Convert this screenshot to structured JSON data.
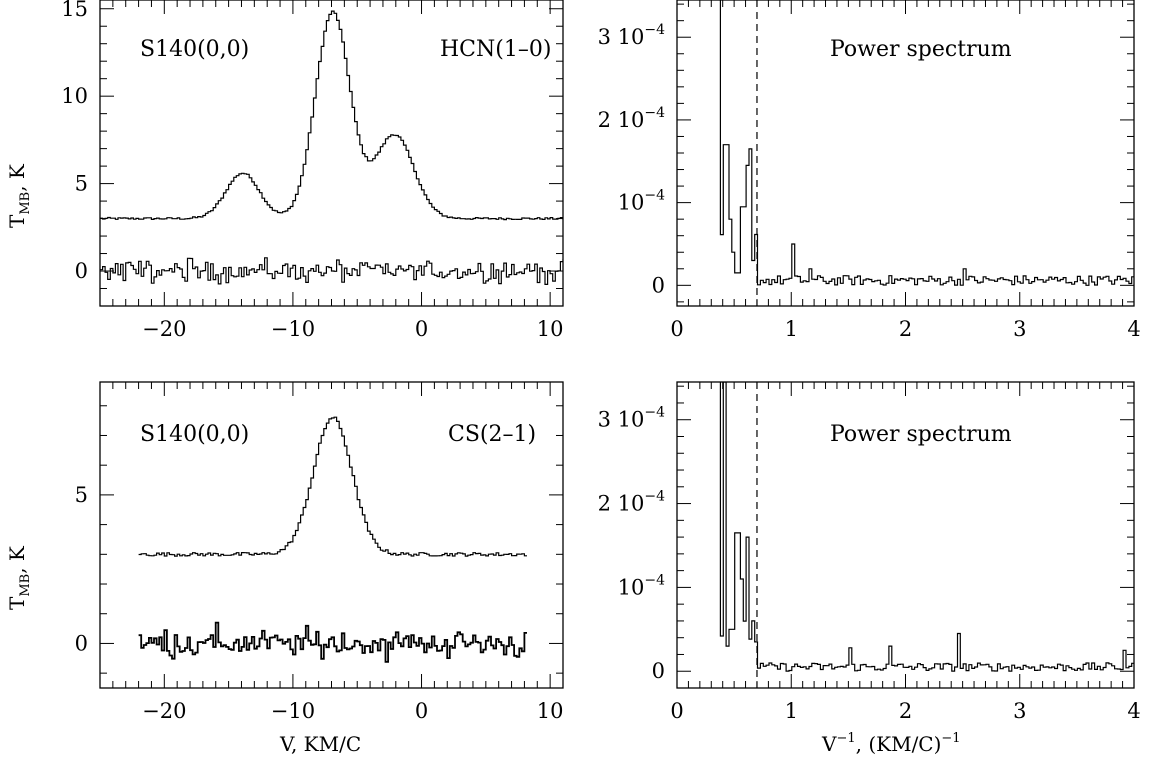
{
  "chart_data": [
    {
      "id": "hcn-spectrum",
      "type": "line",
      "label_left": "S140(0,0)",
      "label_right": "HCN(1–0)",
      "ylabel": "T_MB, K",
      "xlabel": "",
      "xlim": [
        -25,
        11
      ],
      "ylim": [
        -2,
        15.5
      ],
      "x_ticks": [
        -20,
        -10,
        0,
        10
      ],
      "x_tick_labels": [
        "−20",
        "−10",
        "0",
        "10"
      ],
      "y_ticks": [
        0,
        5,
        10,
        15
      ],
      "y_tick_labels": [
        "0",
        "5",
        "10",
        "15"
      ],
      "series": [
        {
          "role": "profile",
          "components": [
            {
              "center": -7.0,
              "amplitude": 11.8,
              "width": 1.35
            },
            {
              "center": -2.2,
              "amplitude": 4.8,
              "width": 1.5
            },
            {
              "center": -14.0,
              "amplitude": 2.6,
              "width": 1.3
            }
          ],
          "baseline": 3.0,
          "x_range": [
            -25,
            11
          ]
        },
        {
          "role": "residuals",
          "baseline": 0.0,
          "noise_amplitude": 0.45,
          "x_range": [
            -25,
            11
          ]
        }
      ]
    },
    {
      "id": "hcn-power",
      "type": "line",
      "label": "Power spectrum",
      "xlabel": "",
      "ylabel": "",
      "xlim": [
        0,
        4
      ],
      "ylim": [
        -0.25,
        3.45
      ],
      "y_unit": "1e-4",
      "x_ticks": [
        0,
        1,
        2,
        3,
        4
      ],
      "x_tick_labels": [
        "0",
        "1",
        "2",
        "3",
        "4"
      ],
      "y_ticks": [
        0,
        1,
        2,
        3
      ],
      "y_tick_labels": [
        "0",
        "10⁻⁴",
        "2 10⁻⁴",
        "3 10⁻⁴"
      ],
      "cutoff_x": 0.7,
      "spikes": [
        {
          "x": 0.4,
          "y": 3.45
        },
        {
          "x": 0.42,
          "y": 1.7
        },
        {
          "x": 0.45,
          "y": 0.8
        },
        {
          "x": 0.48,
          "y": 0.4
        },
        {
          "x": 0.52,
          "y": 0.15
        },
        {
          "x": 0.57,
          "y": 0.95
        },
        {
          "x": 0.6,
          "y": 1.45
        },
        {
          "x": 0.63,
          "y": 1.65
        },
        {
          "x": 0.66,
          "y": 0.3
        },
        {
          "x": 1.0,
          "y": 0.5
        },
        {
          "x": 1.15,
          "y": 0.2
        },
        {
          "x": 2.5,
          "y": 0.2
        }
      ],
      "noise_level": 0.12
    },
    {
      "id": "cs-spectrum",
      "type": "line",
      "label_left": "S140(0,0)",
      "label_right": "CS(2–1)",
      "ylabel": "T_MB, K",
      "xlabel": "V, KM/C",
      "xlim": [
        -25,
        11
      ],
      "ylim": [
        -1.5,
        8.8
      ],
      "x_ticks": [
        -20,
        -10,
        0,
        10
      ],
      "x_tick_labels": [
        "−20",
        "−10",
        "0",
        "10"
      ],
      "y_ticks": [
        0,
        5
      ],
      "y_tick_labels": [
        "0",
        "5"
      ],
      "series": [
        {
          "role": "profile",
          "components": [
            {
              "center": -7.0,
              "amplitude": 4.6,
              "width": 1.5
            }
          ],
          "baseline": 3.0,
          "x_range": [
            -22,
            8
          ]
        },
        {
          "role": "residuals",
          "baseline": 0.0,
          "noise_amplitude": 0.35,
          "x_range": [
            -22,
            8
          ]
        }
      ]
    },
    {
      "id": "cs-power",
      "type": "line",
      "label": "Power spectrum",
      "xlabel": "V⁻¹, (KM/C)⁻¹",
      "ylabel": "",
      "xlim": [
        0,
        4
      ],
      "ylim": [
        -0.2,
        3.45
      ],
      "y_unit": "1e-4",
      "x_ticks": [
        0,
        1,
        2,
        3,
        4
      ],
      "x_tick_labels": [
        "0",
        "1",
        "2",
        "3",
        "4"
      ],
      "y_ticks": [
        0,
        1,
        2,
        3
      ],
      "y_tick_labels": [
        "0",
        "10⁻⁴",
        "2 10⁻⁴",
        "3 10⁻⁴"
      ],
      "cutoff_x": 0.7,
      "spikes": [
        {
          "x": 0.4,
          "y": 3.45
        },
        {
          "x": 0.43,
          "y": 0.3
        },
        {
          "x": 0.47,
          "y": 0.5
        },
        {
          "x": 0.52,
          "y": 1.65
        },
        {
          "x": 0.56,
          "y": 1.1
        },
        {
          "x": 0.6,
          "y": 1.6
        },
        {
          "x": 0.65,
          "y": 0.6
        },
        {
          "x": 0.68,
          "y": 0.35
        },
        {
          "x": 1.5,
          "y": 0.28
        },
        {
          "x": 1.85,
          "y": 0.3
        },
        {
          "x": 2.45,
          "y": 0.45
        },
        {
          "x": 3.9,
          "y": 0.25
        }
      ],
      "noise_level": 0.1
    }
  ]
}
